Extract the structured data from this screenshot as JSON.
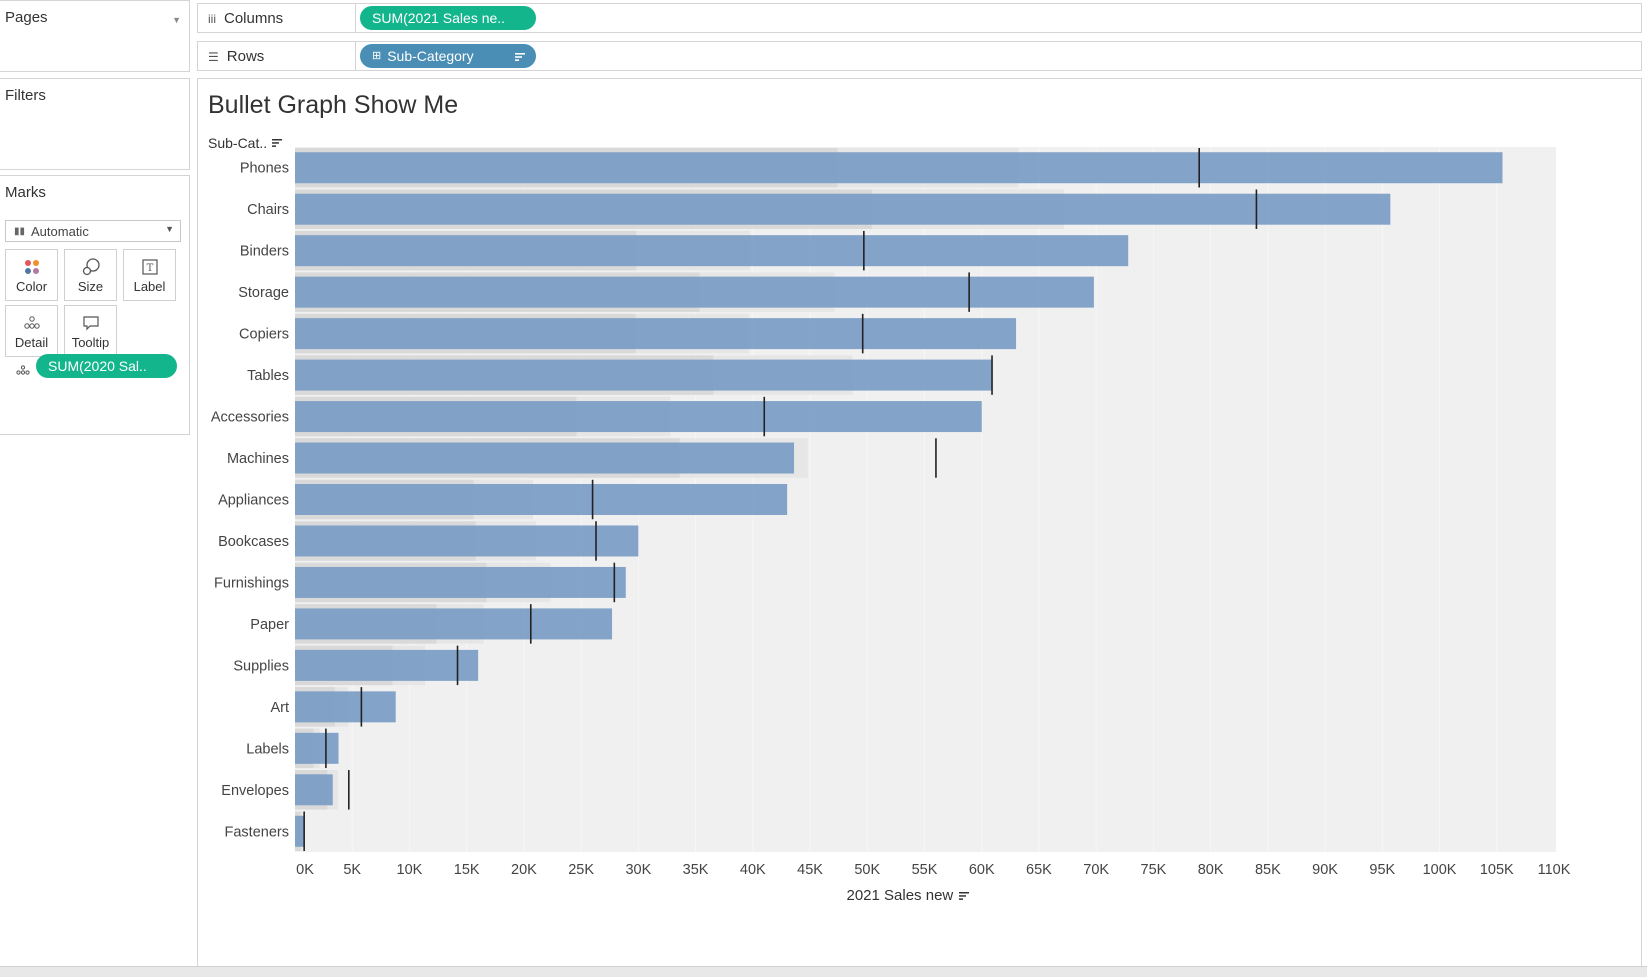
{
  "left_panel": {
    "pages_title": "Pages",
    "filters_title": "Filters",
    "marks_title": "Marks",
    "mark_type": "Automatic",
    "cards": {
      "color": "Color",
      "size": "Size",
      "label": "Label",
      "detail": "Detail",
      "tooltip": "Tooltip"
    },
    "detail_pill": "SUM(2020 Sal.."
  },
  "shelves": {
    "columns_label": "Columns",
    "columns_pill": "SUM(2021 Sales ne..",
    "rows_label": "Rows",
    "rows_pill": "Sub-Category"
  },
  "viz": {
    "title": "Bullet Graph Show Me",
    "row_header": "Sub-Cat.."
  },
  "colors": {
    "bar": "#7b9cc4",
    "reference_line": "#222222",
    "band_dark": "#d9d9d9",
    "band_light": "#e6e6e6",
    "plot_bg": "#f0f0f0",
    "green_pill": "#13b58d",
    "blue_pill": "#4a8db5"
  },
  "chart_data": {
    "type": "bar",
    "orientation": "horizontal",
    "bullet_graph": true,
    "xlabel": "2021 Sales new",
    "ylabel": "Sub-Cat..",
    "xlim": [
      0,
      110000
    ],
    "x_ticks": [
      "0K",
      "5K",
      "10K",
      "15K",
      "20K",
      "25K",
      "30K",
      "35K",
      "40K",
      "45K",
      "50K",
      "55K",
      "60K",
      "65K",
      "70K",
      "75K",
      "80K",
      "85K",
      "90K",
      "95K",
      "100K",
      "105K",
      "110K"
    ],
    "categories": [
      "Phones",
      "Chairs",
      "Binders",
      "Storage",
      "Copiers",
      "Tables",
      "Accessories",
      "Machines",
      "Appliances",
      "Bookcases",
      "Furnishings",
      "Paper",
      "Supplies",
      "Art",
      "Labels",
      "Envelopes",
      "Fasteners"
    ],
    "series": [
      {
        "name": "SUM(2021 Sales ne..",
        "values": [
          105500,
          95700,
          72800,
          69800,
          63000,
          60900,
          60000,
          43600,
          43000,
          30000,
          28900,
          27700,
          16000,
          8800,
          3800,
          3300,
          800
        ]
      },
      {
        "name": "SUM(2020 Sal..",
        "values": [
          79000,
          84000,
          49700,
          58900,
          49600,
          60900,
          41000,
          56000,
          26000,
          26300,
          27900,
          20600,
          14200,
          5800,
          2700,
          4700,
          800
        ]
      }
    ],
    "grid": true
  }
}
